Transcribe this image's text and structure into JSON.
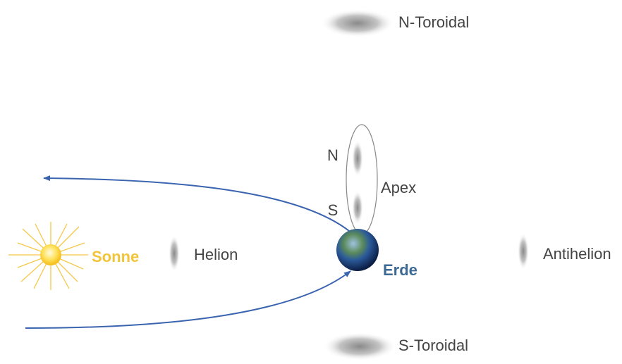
{
  "labels": {
    "n_toroidal": "N-Toroidal",
    "n": "N",
    "s": "S",
    "apex": "Apex",
    "sonne": "Sonne",
    "helion": "Helion",
    "erde": "Erde",
    "antihelion": "Antihelion",
    "s_toroidal": "S-Toroidal"
  }
}
